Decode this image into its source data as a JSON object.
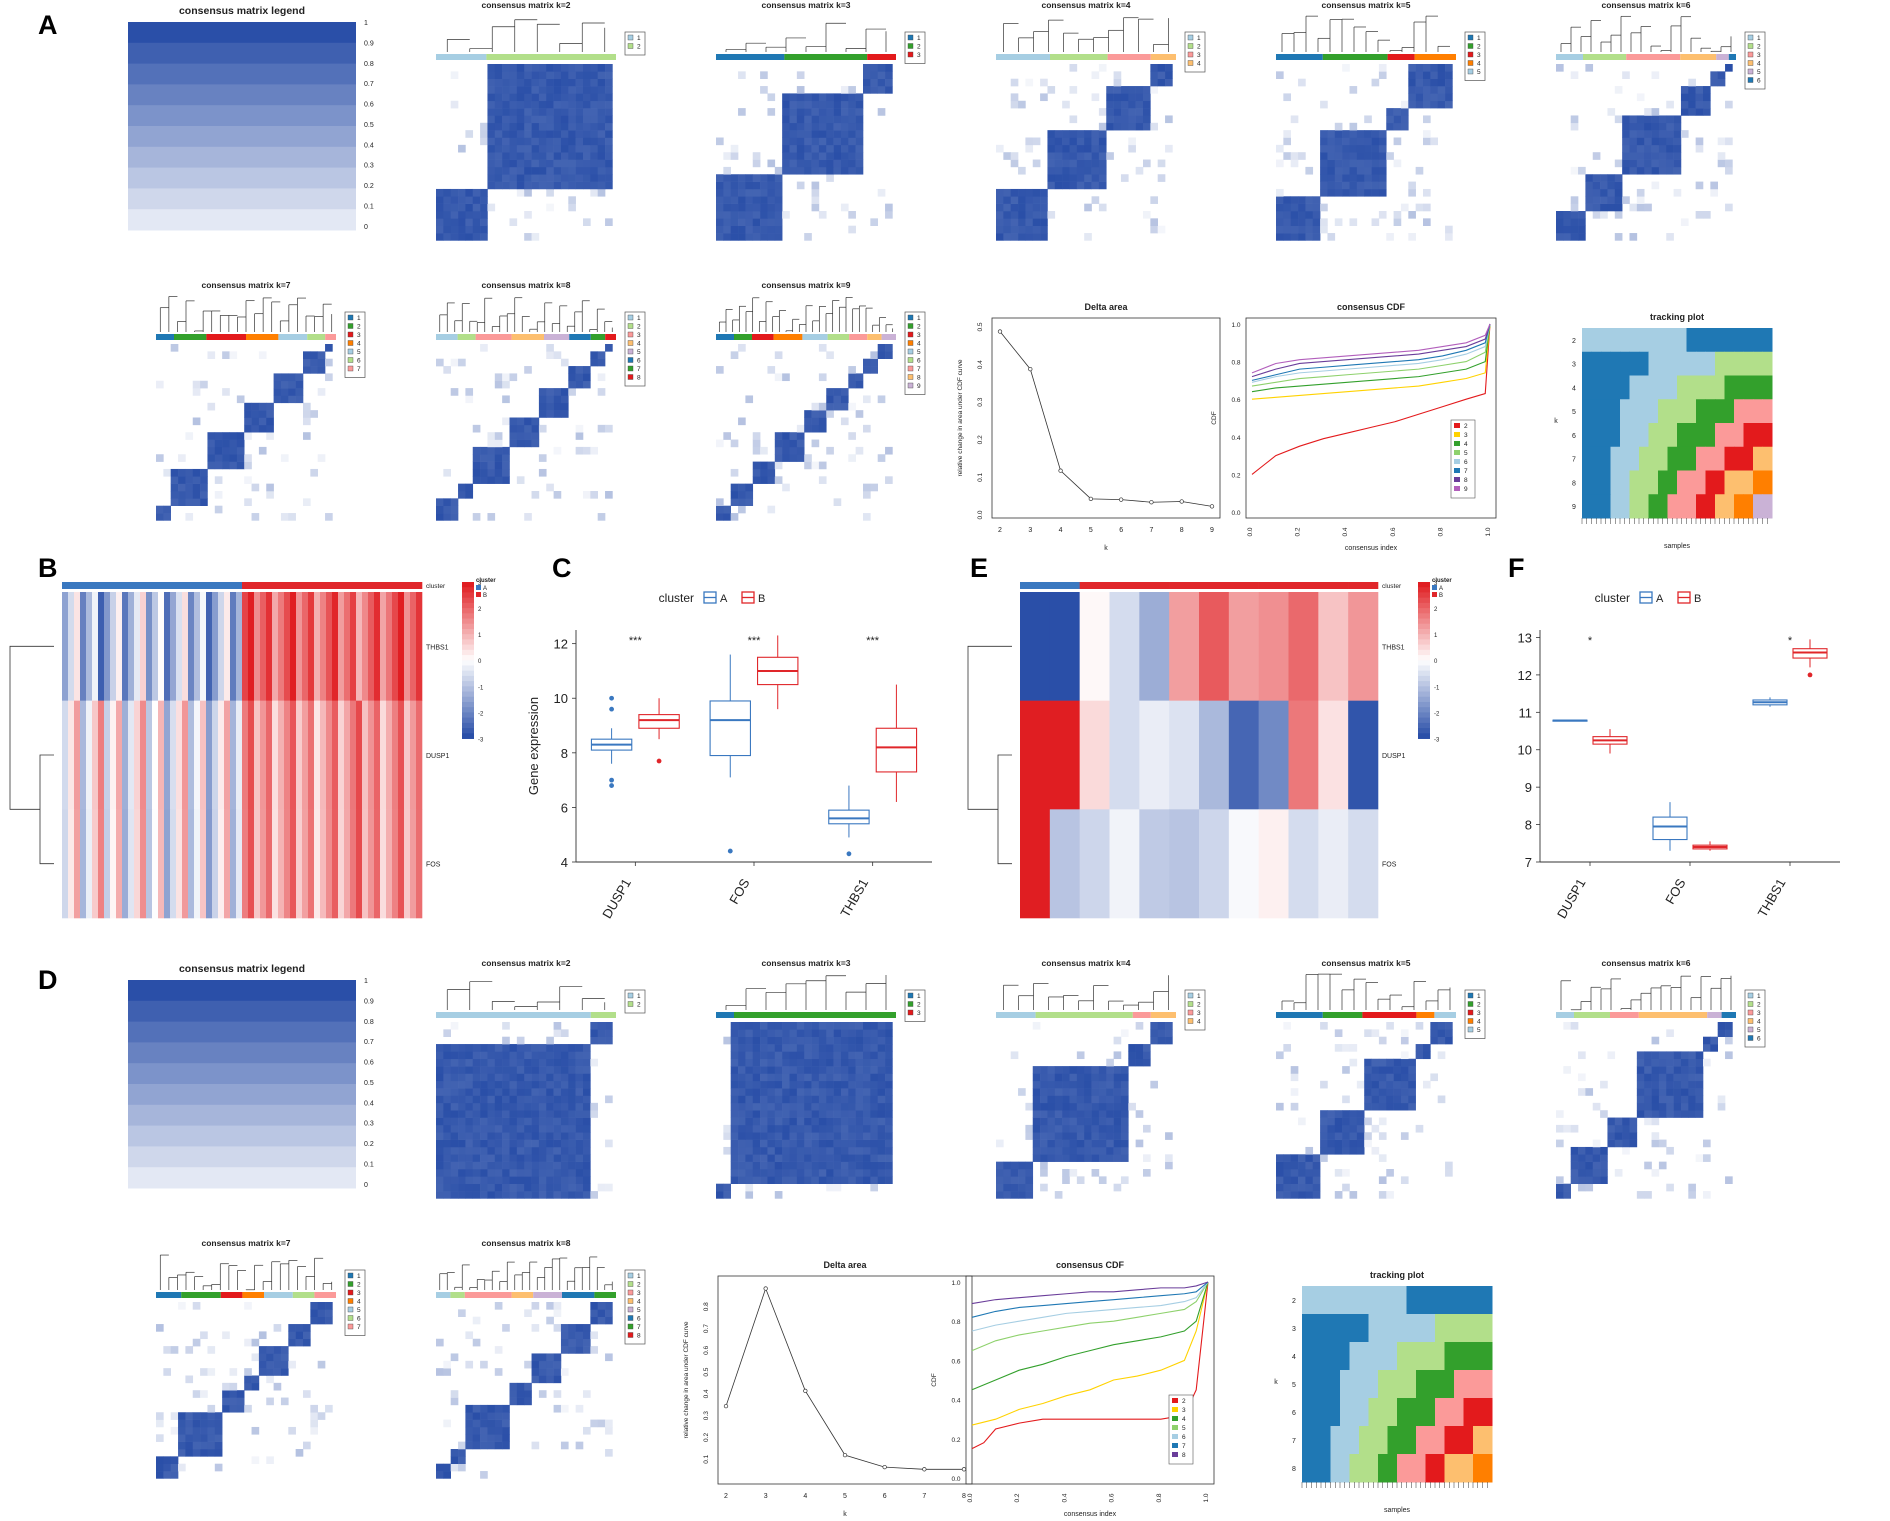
{
  "panel_labels": [
    "A",
    "B",
    "C",
    "D",
    "E",
    "F"
  ],
  "colors": {
    "consensus_blue": "#2a4fa8",
    "heat_red": "#e01e22",
    "heat_blue": "#2a4fa8",
    "cluster_A": "#3a78c0",
    "cluster_B": "#e0262a",
    "k_palette": [
      "#a6cee3",
      "#1f78b4",
      "#b2df8a",
      "#33a02c",
      "#fb9a99",
      "#e31a1c",
      "#fdbf6f",
      "#ff7f00",
      "#cab2d6"
    ]
  },
  "consensus": {
    "legend_title": "consensus matrix legend",
    "legend_ticks": [
      "1",
      "0.9",
      "0.8",
      "0.7",
      "0.6",
      "0.5",
      "0.4",
      "0.3",
      "0.2",
      "0.1",
      "0"
    ],
    "titles_A": [
      "consensus matrix k=2",
      "consensus matrix k=3",
      "consensus matrix k=4",
      "consensus matrix k=5",
      "consensus matrix k=6",
      "consensus matrix k=7",
      "consensus matrix k=8",
      "consensus matrix k=9"
    ],
    "titles_D": [
      "consensus matrix k=2",
      "consensus matrix k=3",
      "consensus matrix k=4",
      "consensus matrix k=5",
      "consensus matrix k=6",
      "consensus matrix k=7",
      "consensus matrix k=8"
    ],
    "tracking_title": "tracking plot",
    "tracking_xlabel": "samples",
    "tracking_ylabel": "k"
  },
  "chart_data": [
    {
      "id": "A-delta",
      "type": "line",
      "title": "Delta area",
      "xlabel": "k",
      "ylabel": "relative change in area under CDF curve",
      "x": [
        2,
        3,
        4,
        5,
        6,
        7,
        8,
        9
      ],
      "y": [
        0.48,
        0.38,
        0.11,
        0.035,
        0.033,
        0.026,
        0.028,
        0.015
      ],
      "xlim": [
        2,
        9
      ],
      "ylim": [
        0,
        0.5
      ],
      "yticks": [
        "0.0",
        "0.1",
        "0.2",
        "0.3",
        "0.4",
        "0.5"
      ]
    },
    {
      "id": "A-cdf",
      "type": "line",
      "title": "consensus CDF",
      "xlabel": "consensus index",
      "ylabel": "CDF",
      "xticks": [
        "0.0",
        "0.2",
        "0.4",
        "0.6",
        "0.8",
        "1.0"
      ],
      "yticks": [
        "0.0",
        "0.2",
        "0.4",
        "0.6",
        "0.8",
        "1.0"
      ],
      "legend": [
        "2",
        "3",
        "4",
        "5",
        "6",
        "7",
        "8",
        "9"
      ],
      "series": [
        {
          "name": "2",
          "x": [
            0,
            0.05,
            0.1,
            0.2,
            0.3,
            0.4,
            0.5,
            0.6,
            0.7,
            0.8,
            0.9,
            0.98,
            1.0
          ],
          "y": [
            0.2,
            0.25,
            0.3,
            0.35,
            0.39,
            0.42,
            0.45,
            0.48,
            0.52,
            0.56,
            0.6,
            0.63,
            1.0
          ]
        },
        {
          "name": "3",
          "x": [
            0,
            0.1,
            0.2,
            0.3,
            0.4,
            0.5,
            0.6,
            0.7,
            0.8,
            0.9,
            0.98,
            1.0
          ],
          "y": [
            0.6,
            0.61,
            0.62,
            0.63,
            0.64,
            0.65,
            0.66,
            0.67,
            0.69,
            0.71,
            0.74,
            1.0
          ]
        },
        {
          "name": "4",
          "x": [
            0,
            0.1,
            0.2,
            0.3,
            0.4,
            0.5,
            0.6,
            0.7,
            0.8,
            0.9,
            0.98,
            1.0
          ],
          "y": [
            0.64,
            0.66,
            0.67,
            0.68,
            0.69,
            0.7,
            0.71,
            0.72,
            0.74,
            0.76,
            0.8,
            1.0
          ]
        },
        {
          "name": "5",
          "x": [
            0,
            0.1,
            0.2,
            0.3,
            0.4,
            0.5,
            0.6,
            0.7,
            0.8,
            0.9,
            0.98,
            1.0
          ],
          "y": [
            0.67,
            0.69,
            0.71,
            0.72,
            0.73,
            0.74,
            0.75,
            0.76,
            0.78,
            0.8,
            0.85,
            1.0
          ]
        },
        {
          "name": "6",
          "x": [
            0,
            0.1,
            0.2,
            0.3,
            0.4,
            0.5,
            0.6,
            0.7,
            0.8,
            0.9,
            0.98,
            1.0
          ],
          "y": [
            0.69,
            0.72,
            0.74,
            0.75,
            0.76,
            0.77,
            0.78,
            0.79,
            0.81,
            0.84,
            0.88,
            1.0
          ]
        },
        {
          "name": "7",
          "x": [
            0,
            0.1,
            0.2,
            0.3,
            0.4,
            0.5,
            0.6,
            0.7,
            0.8,
            0.9,
            0.98,
            1.0
          ],
          "y": [
            0.7,
            0.73,
            0.76,
            0.77,
            0.78,
            0.79,
            0.8,
            0.81,
            0.83,
            0.86,
            0.9,
            1.0
          ]
        },
        {
          "name": "8",
          "x": [
            0,
            0.1,
            0.2,
            0.3,
            0.4,
            0.5,
            0.6,
            0.7,
            0.8,
            0.9,
            0.98,
            1.0
          ],
          "y": [
            0.72,
            0.76,
            0.79,
            0.8,
            0.81,
            0.82,
            0.83,
            0.84,
            0.86,
            0.88,
            0.92,
            1.0
          ]
        },
        {
          "name": "9",
          "x": [
            0,
            0.1,
            0.2,
            0.3,
            0.4,
            0.5,
            0.6,
            0.7,
            0.8,
            0.9,
            0.98,
            1.0
          ],
          "y": [
            0.74,
            0.79,
            0.81,
            0.82,
            0.83,
            0.84,
            0.85,
            0.86,
            0.88,
            0.9,
            0.94,
            1.0
          ]
        }
      ]
    },
    {
      "id": "D-delta",
      "type": "line",
      "title": "Delta area",
      "xlabel": "k",
      "ylabel": "relative change in area under CDF curve",
      "x": [
        2,
        3,
        4,
        5,
        6,
        7,
        8
      ],
      "y": [
        0.33,
        0.87,
        0.4,
        0.105,
        0.05,
        0.04,
        0.04
      ],
      "xlim": [
        2,
        8
      ],
      "ylim": [
        0,
        0.9
      ],
      "yticks": [
        "0.1",
        "0.2",
        "0.3",
        "0.4",
        "0.5",
        "0.6",
        "0.7",
        "0.8"
      ]
    },
    {
      "id": "D-cdf",
      "type": "line",
      "title": "consensus CDF",
      "xlabel": "consensus index",
      "ylabel": "CDF",
      "xticks": [
        "0.0",
        "0.2",
        "0.4",
        "0.6",
        "0.8",
        "1.0"
      ],
      "yticks": [
        "0.0",
        "0.2",
        "0.4",
        "0.6",
        "0.8",
        "1.0"
      ],
      "legend": [
        "2",
        "3",
        "4",
        "5",
        "6",
        "7",
        "8"
      ],
      "series": [
        {
          "name": "2",
          "x": [
            0,
            0.05,
            0.1,
            0.2,
            0.3,
            0.4,
            0.5,
            0.6,
            0.7,
            0.8,
            0.9,
            0.95,
            1.0
          ],
          "y": [
            0.15,
            0.18,
            0.25,
            0.28,
            0.3,
            0.3,
            0.3,
            0.3,
            0.3,
            0.3,
            0.32,
            0.45,
            1.0
          ]
        },
        {
          "name": "3",
          "x": [
            0,
            0.1,
            0.2,
            0.3,
            0.4,
            0.5,
            0.6,
            0.7,
            0.8,
            0.9,
            0.95,
            1.0
          ],
          "y": [
            0.27,
            0.3,
            0.35,
            0.38,
            0.42,
            0.45,
            0.5,
            0.52,
            0.55,
            0.6,
            0.75,
            1.0
          ]
        },
        {
          "name": "4",
          "x": [
            0,
            0.1,
            0.2,
            0.3,
            0.4,
            0.5,
            0.6,
            0.7,
            0.8,
            0.9,
            0.95,
            1.0
          ],
          "y": [
            0.45,
            0.5,
            0.55,
            0.58,
            0.62,
            0.65,
            0.68,
            0.7,
            0.72,
            0.75,
            0.8,
            1.0
          ]
        },
        {
          "name": "5",
          "x": [
            0,
            0.1,
            0.2,
            0.3,
            0.4,
            0.5,
            0.6,
            0.7,
            0.8,
            0.9,
            0.95,
            1.0
          ],
          "y": [
            0.65,
            0.7,
            0.73,
            0.75,
            0.77,
            0.79,
            0.8,
            0.82,
            0.84,
            0.86,
            0.9,
            1.0
          ]
        },
        {
          "name": "6",
          "x": [
            0,
            0.1,
            0.2,
            0.3,
            0.4,
            0.5,
            0.6,
            0.7,
            0.8,
            0.9,
            0.95,
            1.0
          ],
          "y": [
            0.75,
            0.78,
            0.8,
            0.82,
            0.84,
            0.85,
            0.86,
            0.87,
            0.88,
            0.9,
            0.92,
            1.0
          ]
        },
        {
          "name": "7",
          "x": [
            0,
            0.1,
            0.2,
            0.3,
            0.4,
            0.5,
            0.6,
            0.7,
            0.8,
            0.9,
            0.95,
            1.0
          ],
          "y": [
            0.82,
            0.85,
            0.87,
            0.88,
            0.89,
            0.9,
            0.91,
            0.92,
            0.93,
            0.94,
            0.95,
            1.0
          ]
        },
        {
          "name": "8",
          "x": [
            0,
            0.1,
            0.2,
            0.3,
            0.4,
            0.5,
            0.6,
            0.7,
            0.8,
            0.9,
            0.95,
            1.0
          ],
          "y": [
            0.89,
            0.91,
            0.92,
            0.93,
            0.94,
            0.95,
            0.95,
            0.96,
            0.97,
            0.97,
            0.98,
            1.0
          ]
        }
      ]
    },
    {
      "id": "C-box",
      "type": "box",
      "legend_title": "cluster",
      "groups": [
        "A",
        "B"
      ],
      "categories": [
        "DUSP1",
        "FOS",
        "THBS1"
      ],
      "ylabel": "Gene expression",
      "ylim": [
        4,
        12.5
      ],
      "yticks": [
        "4",
        "6",
        "8",
        "10",
        "12"
      ],
      "significance": [
        "***",
        "***",
        "***"
      ],
      "boxes": [
        {
          "cat": "DUSP1",
          "group": "A",
          "min": 7.6,
          "q1": 8.1,
          "med": 8.3,
          "q3": 8.5,
          "max": 8.9,
          "outliers": [
            10.0,
            9.6,
            7.0,
            6.8
          ]
        },
        {
          "cat": "DUSP1",
          "group": "B",
          "min": 8.5,
          "q1": 8.9,
          "med": 9.2,
          "q3": 9.4,
          "max": 10.0,
          "outliers": [
            7.7
          ]
        },
        {
          "cat": "FOS",
          "group": "A",
          "min": 7.1,
          "q1": 7.9,
          "med": 9.2,
          "q3": 9.9,
          "max": 11.6,
          "outliers": [
            4.4
          ]
        },
        {
          "cat": "FOS",
          "group": "B",
          "min": 9.6,
          "q1": 10.5,
          "med": 11.0,
          "q3": 11.5,
          "max": 12.3,
          "outliers": []
        },
        {
          "cat": "THBS1",
          "group": "A",
          "min": 4.9,
          "q1": 5.4,
          "med": 5.6,
          "q3": 5.9,
          "max": 6.8,
          "outliers": [
            4.3
          ]
        },
        {
          "cat": "THBS1",
          "group": "B",
          "min": 6.2,
          "q1": 7.3,
          "med": 8.2,
          "q3": 8.9,
          "max": 10.5,
          "outliers": []
        }
      ]
    },
    {
      "id": "F-box",
      "type": "box",
      "legend_title": "cluster",
      "groups": [
        "A",
        "B"
      ],
      "categories": [
        "DUSP1",
        "FOS",
        "THBS1"
      ],
      "ylabel": "",
      "ylim": [
        7,
        13.2
      ],
      "yticks": [
        "7",
        "8",
        "9",
        "10",
        "11",
        "12",
        "13"
      ],
      "significance": [
        "*",
        "",
        "*"
      ],
      "boxes": [
        {
          "cat": "DUSP1",
          "group": "A",
          "min": 10.78,
          "q1": 10.78,
          "med": 10.78,
          "q3": 10.79,
          "max": 10.8,
          "outliers": []
        },
        {
          "cat": "DUSP1",
          "group": "B",
          "min": 9.9,
          "q1": 10.15,
          "med": 10.25,
          "q3": 10.35,
          "max": 10.55,
          "outliers": []
        },
        {
          "cat": "FOS",
          "group": "A",
          "min": 7.3,
          "q1": 7.6,
          "med": 7.95,
          "q3": 8.2,
          "max": 8.6,
          "outliers": []
        },
        {
          "cat": "FOS",
          "group": "B",
          "min": 7.3,
          "q1": 7.35,
          "med": 7.4,
          "q3": 7.45,
          "max": 7.55,
          "outliers": []
        },
        {
          "cat": "THBS1",
          "group": "A",
          "min": 11.15,
          "q1": 11.2,
          "med": 11.27,
          "q3": 11.33,
          "max": 11.4,
          "outliers": []
        },
        {
          "cat": "THBS1",
          "group": "B",
          "min": 12.2,
          "q1": 12.45,
          "med": 12.6,
          "q3": 12.7,
          "max": 12.95,
          "outliers": [
            12.0
          ]
        }
      ]
    },
    {
      "id": "B-heatmap",
      "type": "heatmap",
      "rows": [
        "THBS1",
        "DUSP1",
        "FOS"
      ],
      "annotation_label": "cluster",
      "legend_title": "cluster",
      "groups": [
        "A",
        "B"
      ],
      "scale_ticks": [
        "3",
        "2",
        "1",
        "0",
        "-1",
        "-2",
        "-3"
      ]
    },
    {
      "id": "E-heatmap",
      "type": "heatmap",
      "rows": [
        "THBS1",
        "DUSP1",
        "FOS"
      ],
      "annotation_label": "cluster",
      "legend_title": "cluster",
      "groups": [
        "A",
        "B"
      ],
      "scale_ticks": [
        "3",
        "2",
        "1",
        "0",
        "-1",
        "-2",
        "-3"
      ],
      "values": [
        [
          -3.0,
          -3.0,
          0.1,
          -0.6,
          -1.4,
          1.3,
          2.2,
          1.3,
          1.5,
          2.0,
          0.8,
          1.4
        ],
        [
          3.0,
          3.0,
          0.5,
          -0.6,
          -0.3,
          -0.5,
          -1.2,
          -2.6,
          -2.0,
          1.8,
          0.4,
          -2.9
        ],
        [
          3.0,
          -1.0,
          -0.7,
          -0.2,
          -0.9,
          -1.0,
          -0.7,
          -0.1,
          0.2,
          -0.6,
          -0.3,
          -0.6
        ]
      ]
    }
  ]
}
